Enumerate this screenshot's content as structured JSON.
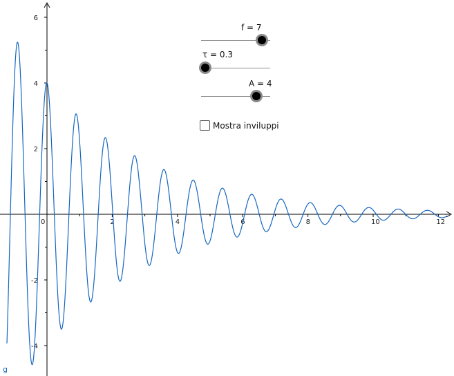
{
  "sliders": {
    "f": {
      "label": "f = 7",
      "value": 7,
      "min": 0,
      "max": 8
    },
    "tau": {
      "label": "τ = 0.3",
      "value": 0.3,
      "min": 0,
      "max": 5
    },
    "A": {
      "label": "A = 4",
      "value": 4,
      "min": 0,
      "max": 5
    }
  },
  "checkbox": {
    "label": "Mostra inviluppi",
    "checked": false
  },
  "curve": {
    "label": "g",
    "color": "#1565c0"
  },
  "axes": {
    "x_ticks": [
      "0",
      "2",
      "4",
      "6",
      "8",
      "10",
      "12"
    ],
    "y_ticks": [
      "6",
      "4",
      "2",
      "-2",
      "-4"
    ],
    "xlim": [
      -0.2,
      12.4
    ],
    "ylim": [
      -4.9,
      6.2
    ]
  }
}
